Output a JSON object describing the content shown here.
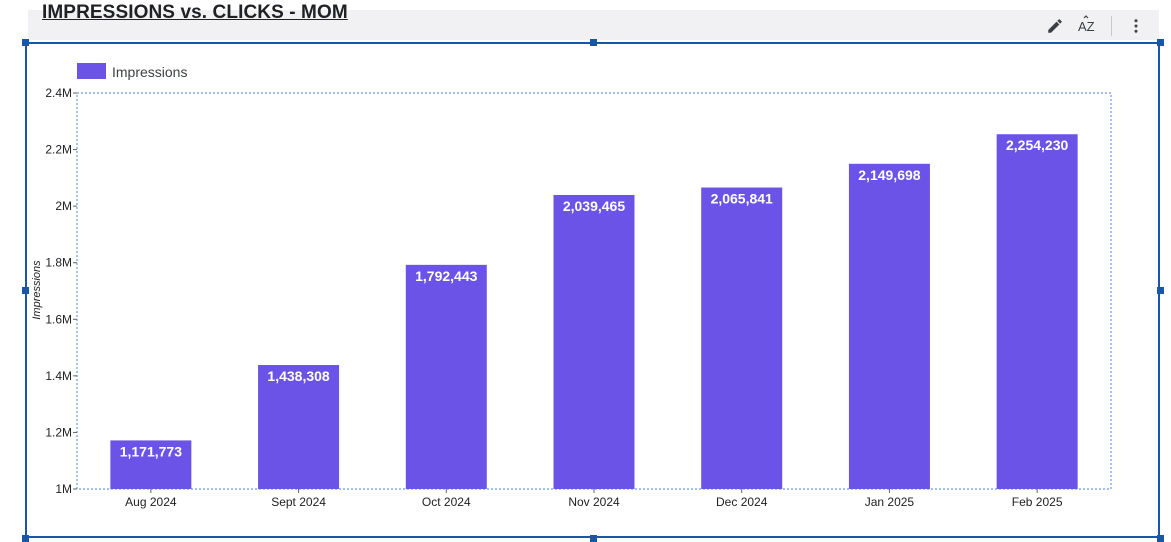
{
  "header": {
    "title": "IMPRESSIONS vs. CLICKS - MOM"
  },
  "toolbar": {
    "icons": [
      "pencil-icon",
      "sort-az-icon",
      "more-vert-icon"
    ],
    "sort_label": "AZ"
  },
  "colors": {
    "bar": "#6c53e8",
    "frame": "#1a56a8",
    "plot_border": "#4a86c8"
  },
  "chart_data": {
    "type": "bar",
    "categories": [
      "Aug 2024",
      "Sept 2024",
      "Oct 2024",
      "Nov 2024",
      "Dec 2024",
      "Jan 2025",
      "Feb 2025"
    ],
    "series": [
      {
        "name": "Impressions",
        "values": [
          1171773,
          1438308,
          1792443,
          2039465,
          2065841,
          2149698,
          2254230
        ],
        "labels": [
          "1,171,773",
          "1,438,308",
          "1,792,443",
          "2,039,465",
          "2,065,841",
          "2,149,698",
          "2,254,230"
        ]
      }
    ],
    "ylabel": "Impressions",
    "xlabel": "",
    "ylim": [
      1000000,
      2400000
    ],
    "yticks": [
      1000000,
      1200000,
      1400000,
      1600000,
      1800000,
      2000000,
      2200000,
      2400000
    ],
    "ytick_labels": [
      "1M",
      "1.2M",
      "1.4M",
      "1.6M",
      "1.8M",
      "2M",
      "2.2M",
      "2.4M"
    ],
    "legend_position": "top-left",
    "grid": false
  }
}
